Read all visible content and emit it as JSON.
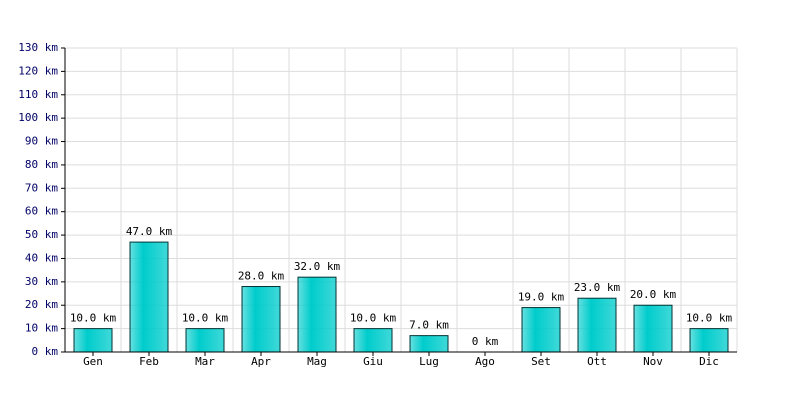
{
  "chart_data": {
    "type": "bar",
    "categories": [
      "Gen",
      "Feb",
      "Mar",
      "Apr",
      "Mag",
      "Giu",
      "Lug",
      "Ago",
      "Set",
      "Ott",
      "Nov",
      "Dic"
    ],
    "values": [
      10,
      47,
      10,
      28,
      32,
      10,
      7,
      0,
      19,
      23,
      20,
      10
    ],
    "value_labels": [
      "10.0 km",
      "47.0 km",
      "10.0 km",
      "28.0 km",
      "32.0 km",
      "10.0 km",
      "7.0 km",
      "0 km",
      "19.0 km",
      "23.0 km",
      "20.0 km",
      "10.0 km"
    ],
    "color": "#00cccc",
    "ylim": [
      0,
      130
    ],
    "yticks": [
      {
        "value": 0,
        "label": "0 km"
      },
      {
        "value": 10,
        "label": "10 km"
      },
      {
        "value": 20,
        "label": "20 km"
      },
      {
        "value": 30,
        "label": "30 km"
      },
      {
        "value": 40,
        "label": "40 km"
      },
      {
        "value": 50,
        "label": "50 km"
      },
      {
        "value": 60,
        "label": "60 km"
      },
      {
        "value": 70,
        "label": "70 km"
      },
      {
        "value": 80,
        "label": "80 km"
      },
      {
        "value": 90,
        "label": "90 km"
      },
      {
        "value": 100,
        "label": "100 km"
      },
      {
        "value": 110,
        "label": "110 km"
      },
      {
        "value": 120,
        "label": "120 km"
      },
      {
        "value": 130,
        "label": "130 km"
      }
    ],
    "grid": true
  }
}
